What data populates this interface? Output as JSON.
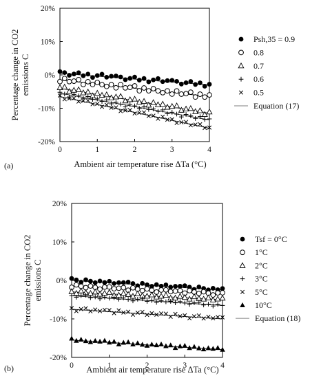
{
  "chart_data": [
    {
      "type": "scatter",
      "panel_label": "(a)",
      "xlabel": "Ambient air temperature rise ΔTa (°C)",
      "ylabel_line1": "Percentage change in CO2",
      "ylabel_line2": "emissions C",
      "xlim": [
        0,
        4
      ],
      "ylim": [
        -20,
        20
      ],
      "xticks": [
        "0",
        "1",
        "2",
        "3",
        "4"
      ],
      "yticks": [
        "20%",
        "10%",
        "0%",
        "-10%",
        "-20%"
      ],
      "ytick_values": [
        20,
        10,
        0,
        -10,
        -20
      ],
      "grid": false,
      "legend_position": "right",
      "legend_param_label": "Psh,35 = 0.9",
      "fit_label": "Equation (17)",
      "series": [
        {
          "name": "0.9",
          "marker": "filled-circle",
          "fit": [
            0.5,
            -3.0
          ],
          "pattern": [
            0.5,
            0.3,
            -0.4,
            0.1,
            0.6,
            -0.2,
            0.4,
            -0.5,
            0.2,
            0.7,
            -0.1,
            0.3
          ]
        },
        {
          "name": "0.8",
          "marker": "open-circle",
          "fit": [
            -1.5,
            -6.5
          ],
          "pattern": [
            0.3,
            -0.5,
            0.6,
            -0.2,
            0.1,
            0.7,
            -0.6,
            0.4,
            -0.3,
            0.5,
            0.0,
            -0.4
          ]
        },
        {
          "name": "0.7",
          "marker": "open-triangle",
          "fit": [
            -4.0,
            -11.5
          ],
          "pattern": [
            0.4,
            -0.3,
            0.2,
            0.6,
            -0.5,
            0.1,
            0.5,
            -0.2,
            0.3,
            -0.6,
            0.4,
            0.0
          ]
        },
        {
          "name": "0.6",
          "marker": "plus",
          "fit": [
            -5.5,
            -13.5
          ],
          "pattern": [
            -0.2,
            0.5,
            -0.4,
            0.3,
            0.0,
            -0.6,
            0.4,
            0.2,
            -0.3,
            0.5,
            -0.1,
            0.3
          ]
        },
        {
          "name": "0.5",
          "marker": "cross",
          "fit": [
            -6.5,
            -16.0
          ],
          "pattern": [
            0.2,
            -0.4,
            0.5,
            -0.1,
            0.3,
            -0.5,
            0.0,
            0.4,
            -0.3,
            0.2,
            0.6,
            -0.2
          ]
        }
      ]
    },
    {
      "type": "scatter",
      "panel_label": "(b)",
      "xlabel": "Ambient air temperature rise ΔTa (°C)",
      "ylabel_line1": "Percentage change in CO2",
      "ylabel_line2": "emissions C",
      "xlim": [
        0,
        4
      ],
      "ylim": [
        -20,
        20
      ],
      "xticks": [
        "0",
        "1",
        "2",
        "3",
        "4"
      ],
      "yticks": [
        "20%",
        "10%",
        "0%",
        "-10%",
        "-20%"
      ],
      "ytick_values": [
        20,
        10,
        0,
        -10,
        -20
      ],
      "grid": false,
      "legend_position": "right",
      "legend_param_label": "Tsf = 0°C",
      "fit_label": "Equation (18)",
      "series": [
        {
          "name": "0°C",
          "marker": "filled-circle",
          "fit": [
            0.0,
            -2.5
          ],
          "pattern": [
            0.5,
            0.2,
            -0.3,
            0.4,
            0.1,
            -0.2,
            0.3,
            0.0,
            0.4,
            -0.1,
            0.2,
            0.3
          ]
        },
        {
          "name": "1°C",
          "marker": "open-circle",
          "fit": [
            -1.5,
            -3.5
          ],
          "pattern": [
            0.3,
            -0.3,
            0.4,
            0.1,
            -0.2,
            0.3,
            0.0,
            -0.4,
            0.2,
            0.3,
            -0.1,
            0.1
          ]
        },
        {
          "name": "2°C",
          "marker": "open-triangle",
          "fit": [
            -3.0,
            -5.0
          ],
          "pattern": [
            -0.2,
            0.3,
            0.1,
            -0.3,
            0.4,
            0.0,
            -0.1,
            0.3,
            -0.2,
            0.1,
            0.4,
            -0.3
          ]
        },
        {
          "name": "3°C",
          "marker": "plus",
          "fit": [
            -4.0,
            -6.5
          ],
          "pattern": [
            0.2,
            -0.1,
            0.3,
            0.0,
            -0.3,
            0.2,
            0.4,
            -0.2,
            0.1,
            -0.3,
            0.2,
            0.0
          ]
        },
        {
          "name": "5°C",
          "marker": "cross",
          "fit": [
            -7.5,
            -10.0
          ],
          "pattern": [
            0.4,
            -0.3,
            0.5,
            0.0,
            0.3,
            -0.4,
            0.2,
            0.5,
            -0.2,
            0.3,
            0.0,
            0.4
          ]
        },
        {
          "name": "10°C",
          "marker": "filled-triangle",
          "fit": [
            -15.5,
            -18.0
          ],
          "pattern": [
            0.4,
            0.0,
            0.3,
            -0.3,
            0.2,
            0.4,
            -0.1,
            0.3,
            0.0,
            -0.2,
            0.2,
            0.1
          ]
        }
      ]
    }
  ]
}
